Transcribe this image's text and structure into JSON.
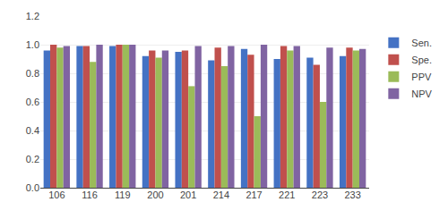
{
  "chart_data": {
    "type": "bar",
    "categories": [
      "106",
      "116",
      "119",
      "200",
      "201",
      "214",
      "217",
      "221",
      "223",
      "233"
    ],
    "series": [
      {
        "name": "Sen.",
        "color": "#4472C4",
        "values": [
          0.96,
          0.99,
          0.99,
          0.92,
          0.95,
          0.89,
          0.97,
          0.9,
          0.91,
          0.92
        ]
      },
      {
        "name": "Spe.",
        "color": "#C0504D",
        "values": [
          1.0,
          0.99,
          1.0,
          0.96,
          0.96,
          0.98,
          0.93,
          0.99,
          0.86,
          0.98
        ]
      },
      {
        "name": "PPV",
        "color": "#9BBB59",
        "values": [
          0.98,
          0.88,
          1.0,
          0.91,
          0.71,
          0.85,
          0.5,
          0.96,
          0.6,
          0.96
        ]
      },
      {
        "name": "NPV",
        "color": "#8064A2",
        "values": [
          0.99,
          1.0,
          1.0,
          0.96,
          0.99,
          0.99,
          1.0,
          0.99,
          0.98,
          0.97
        ]
      }
    ],
    "ylim": [
      0,
      1.2
    ],
    "yticks": [
      {
        "value": 0,
        "label": "0.0"
      },
      0.2,
      0.4,
      0.6,
      0.8,
      {
        "value": 1.0,
        "label": "1.0"
      },
      1.2
    ],
    "grid": true,
    "legend": "right"
  }
}
